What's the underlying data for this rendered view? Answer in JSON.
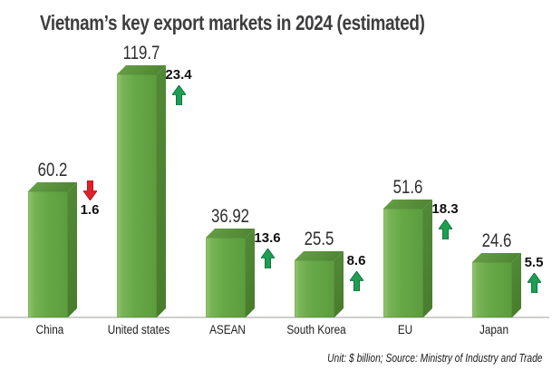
{
  "title": "Vietnam’s key export markets in 2024 (estimated)",
  "footnote": "Unit: $ billion; Source: Ministry of Industry and Trade",
  "colors": {
    "bar_front_light": "#93c771",
    "bar_front": "#66a846",
    "bar_front_dark": "#5c9c3e",
    "bar_top": "#578c39",
    "bar_side": "#4c8030",
    "up_arrow_fill": "#1d9e53",
    "up_arrow_stroke": "#0c6b38",
    "down_arrow_fill": "#e02027",
    "down_arrow_stroke": "#a8161c",
    "baseline": "#cdd0cc",
    "title_text": "#3d3d3f"
  },
  "icons": {
    "up": "arrow-up-icon",
    "down": "arrow-down-icon"
  },
  "chart_data": {
    "type": "bar",
    "title": "Vietnam’s key export markets in 2024 (estimated)",
    "unit": "$ billion",
    "source": "Ministry of Industry and Trade",
    "categories": [
      "China",
      "United states",
      "ASEAN",
      "South Korea",
      "EU",
      "Japan"
    ],
    "values": [
      60.2,
      119.7,
      36.92,
      25.5,
      51.6,
      24.6
    ],
    "change_percent": [
      -1.6,
      23.4,
      13.6,
      8.6,
      18.3,
      5.5
    ],
    "value_labels": [
      "60.2",
      "119.7",
      "36.92",
      "25.5",
      "51.6",
      "24.6"
    ],
    "change_labels": [
      "1.6",
      "23.4",
      "13.6",
      "8.6",
      "18.3",
      "5.5"
    ],
    "xlabel": "",
    "ylabel": "",
    "ylim": [
      0,
      130
    ],
    "grid": false,
    "legend": false,
    "style": "3d-green-bars"
  }
}
